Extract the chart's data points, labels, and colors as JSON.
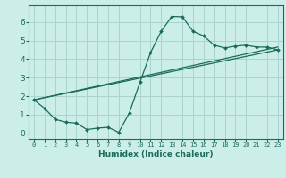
{
  "title": "",
  "xlabel": "Humidex (Indice chaleur)",
  "bg_color": "#cceee8",
  "grid_color": "#aad4ce",
  "line_color": "#1a6b5a",
  "xlim": [
    -0.5,
    23.5
  ],
  "ylim": [
    -0.3,
    6.9
  ],
  "xticks": [
    0,
    1,
    2,
    3,
    4,
    5,
    6,
    7,
    8,
    9,
    10,
    11,
    12,
    13,
    14,
    15,
    16,
    17,
    18,
    19,
    20,
    21,
    22,
    23
  ],
  "yticks": [
    0,
    1,
    2,
    3,
    4,
    5,
    6
  ],
  "series1_x": [
    0,
    1,
    2,
    3,
    4,
    5,
    6,
    7,
    8,
    9,
    10,
    11,
    12,
    13,
    14,
    15,
    16,
    17,
    18,
    19,
    20,
    21,
    22,
    23
  ],
  "series1_y": [
    1.8,
    1.35,
    0.75,
    0.6,
    0.55,
    0.2,
    0.28,
    0.32,
    0.05,
    1.1,
    2.75,
    4.35,
    5.5,
    6.3,
    6.28,
    5.5,
    5.25,
    4.75,
    4.6,
    4.7,
    4.75,
    4.65,
    4.65,
    4.5
  ],
  "series2_x": [
    0,
    23
  ],
  "series2_y": [
    1.8,
    4.5
  ],
  "series3_x": [
    0,
    23
  ],
  "series3_y": [
    1.8,
    4.65
  ]
}
